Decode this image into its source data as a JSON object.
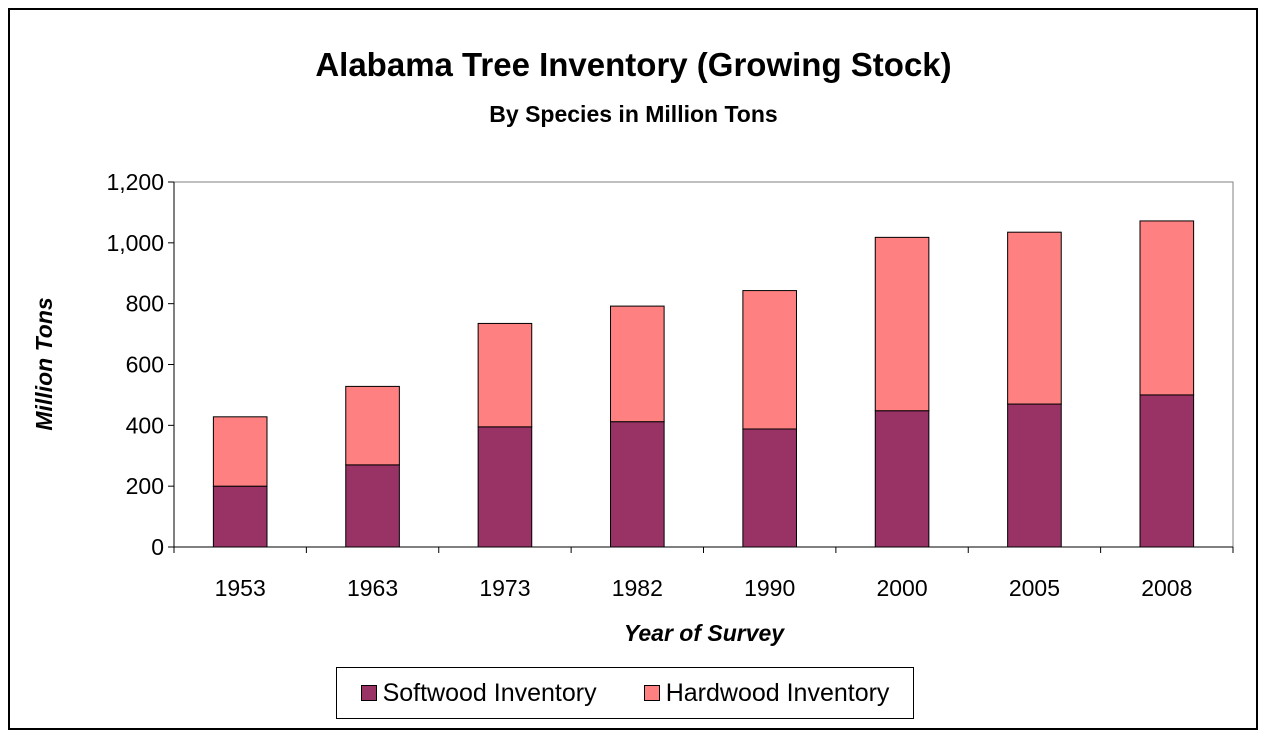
{
  "chart_data": {
    "type": "bar",
    "stacked": true,
    "title": "Alabama Tree Inventory (Growing Stock)",
    "subtitle": "By Species in Million Tons",
    "xlabel": "Year of Survey",
    "ylabel": "Million Tons",
    "categories": [
      "1953",
      "1963",
      "1973",
      "1982",
      "1990",
      "2000",
      "2005",
      "2008"
    ],
    "series": [
      {
        "name": "Softwood Inventory",
        "color": "#993366",
        "values": [
          200,
          270,
          395,
          412,
          388,
          448,
          470,
          500
        ]
      },
      {
        "name": "Hardwood Inventory",
        "color": "#FF8080",
        "values": [
          228,
          258,
          340,
          380,
          455,
          570,
          565,
          572
        ]
      }
    ],
    "ylim": [
      0,
      1200
    ],
    "yticks": [
      0,
      200,
      400,
      600,
      800,
      1000,
      1200
    ],
    "ytick_labels": [
      "0",
      "200",
      "400",
      "600",
      "800",
      "1,000",
      "1,200"
    ],
    "grid": false,
    "legend": "bottom",
    "plot_background": "#FFFFFF"
  }
}
